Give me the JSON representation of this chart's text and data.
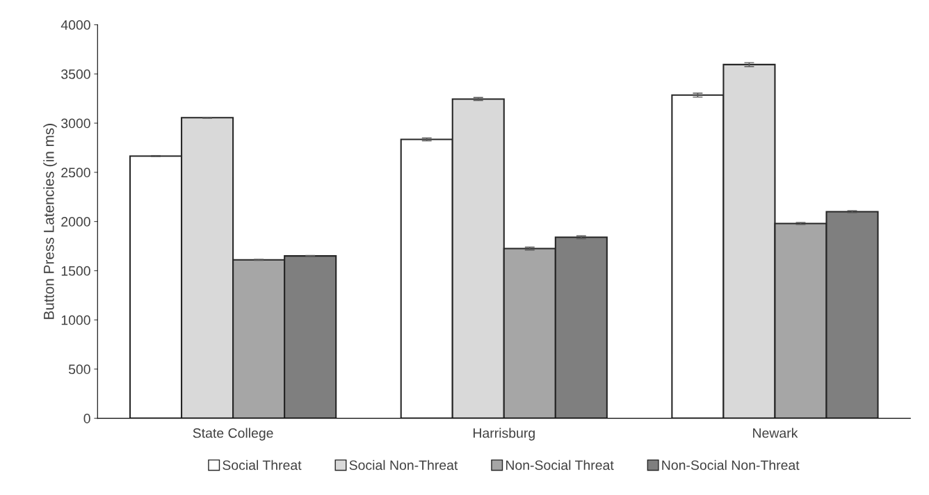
{
  "chart_data": {
    "type": "bar",
    "ylabel": "Button Press Latencies (in ms)",
    "categories": [
      "State College",
      "Harrisburg",
      "Newark"
    ],
    "series": [
      {
        "name": "Social Threat",
        "color": "#ffffff",
        "values": [
          2665,
          2835,
          3285
        ],
        "errors": [
          5,
          15,
          20
        ]
      },
      {
        "name": "Social Non-Threat",
        "color": "#d9d9d9",
        "values": [
          3055,
          3245,
          3595
        ],
        "errors": [
          5,
          15,
          20
        ]
      },
      {
        "name": "Non-Social Threat",
        "color": "#a6a6a6",
        "values": [
          1610,
          1725,
          1980
        ],
        "errors": [
          5,
          15,
          10
        ]
      },
      {
        "name": "Non-Social Non-Threat",
        "color": "#7f7f7f",
        "values": [
          1650,
          1840,
          2100
        ],
        "errors": [
          5,
          15,
          10
        ]
      }
    ],
    "ylim": [
      0,
      4000
    ],
    "yticks": [
      0,
      500,
      1000,
      1500,
      2000,
      2500,
      3000,
      3500,
      4000
    ],
    "grid": false,
    "legend": "bottom"
  }
}
